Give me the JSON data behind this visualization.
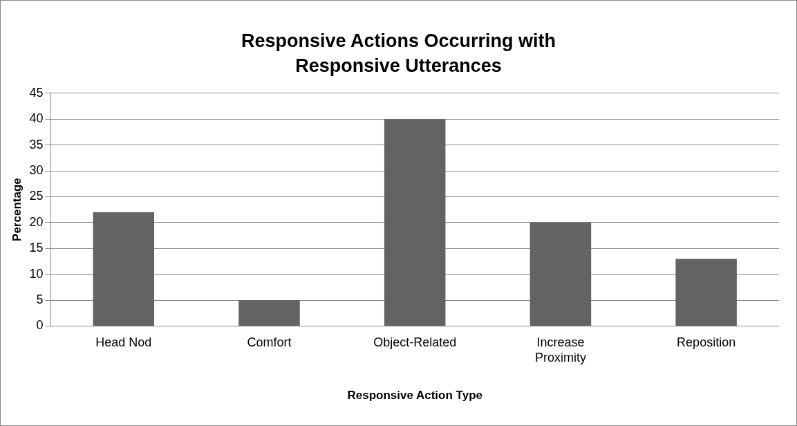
{
  "chart_data": {
    "type": "bar",
    "title": "Responsive Actions Occurring with Responsive Utterances",
    "xlabel": "Responsive Action Type",
    "ylabel": "Percentage",
    "categories": [
      "Head Nod",
      "Comfort",
      "Object-Related",
      "Increase Proximity",
      "Reposition"
    ],
    "values": [
      22,
      5,
      40,
      20,
      13
    ],
    "color": "#636363",
    "ylim": [
      0,
      45
    ],
    "yticks": [
      0,
      5,
      10,
      15,
      20,
      25,
      30,
      35,
      40,
      45
    ],
    "grid": "y",
    "legend": false
  }
}
